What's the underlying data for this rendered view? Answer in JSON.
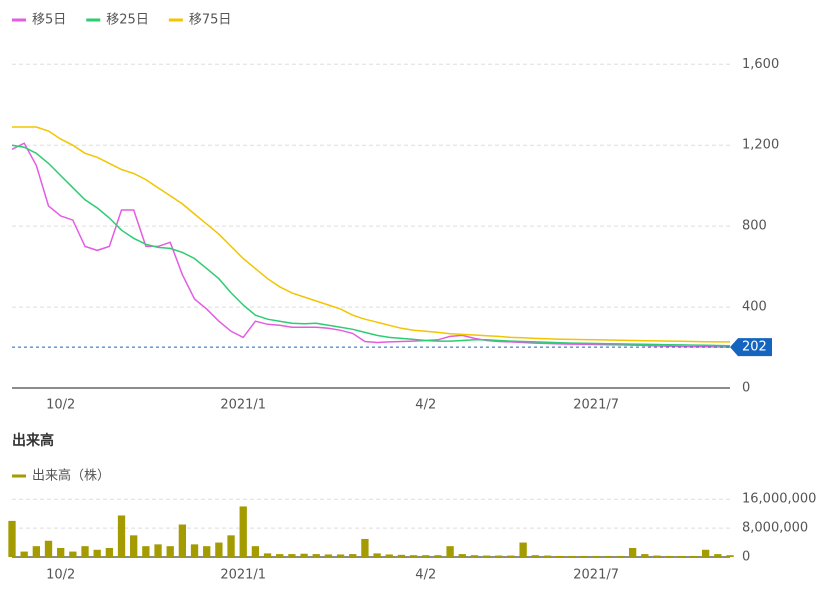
{
  "chart_data": [
    {
      "type": "line",
      "categories": [
        null,
        null,
        null,
        null,
        "10/2",
        null,
        null,
        null,
        null,
        null,
        null,
        null,
        null,
        null,
        null,
        null,
        null,
        null,
        null,
        "2021/1",
        null,
        null,
        null,
        null,
        null,
        null,
        null,
        null,
        null,
        null,
        null,
        null,
        null,
        null,
        "4/2",
        null,
        null,
        null,
        null,
        null,
        null,
        null,
        null,
        null,
        null,
        null,
        null,
        null,
        "2021/7",
        null,
        null,
        null,
        null,
        null,
        null,
        null,
        null,
        null,
        null,
        null
      ],
      "series": [
        {
          "name": "移5日",
          "color": "#e35de3",
          "values": [
            1180,
            1210,
            1100,
            900,
            850,
            830,
            700,
            680,
            700,
            880,
            880,
            700,
            700,
            720,
            560,
            440,
            390,
            330,
            280,
            250,
            330,
            315,
            310,
            300,
            300,
            300,
            295,
            285,
            270,
            230,
            225,
            228,
            230,
            232,
            235,
            238,
            255,
            260,
            245,
            235,
            230,
            228,
            225,
            222,
            220,
            218,
            217,
            216,
            215,
            214,
            213,
            212,
            210,
            208,
            206,
            205,
            204,
            204,
            203,
            202
          ]
        },
        {
          "name": "移25日",
          "color": "#2ecc71",
          "values": [
            1200,
            1190,
            1160,
            1110,
            1050,
            990,
            930,
            890,
            840,
            780,
            740,
            710,
            695,
            690,
            670,
            640,
            590,
            540,
            470,
            410,
            360,
            340,
            330,
            320,
            318,
            320,
            310,
            300,
            290,
            275,
            260,
            250,
            245,
            240,
            235,
            232,
            232,
            235,
            238,
            238,
            235,
            232,
            230,
            228,
            226,
            224,
            222,
            221,
            220,
            219,
            218,
            217,
            216,
            215,
            214,
            213,
            212,
            211,
            210,
            209
          ]
        },
        {
          "name": "移75日",
          "color": "#f2c500",
          "values": [
            1290,
            1290,
            1290,
            1270,
            1230,
            1200,
            1160,
            1140,
            1110,
            1080,
            1060,
            1030,
            990,
            950,
            910,
            860,
            810,
            760,
            700,
            640,
            590,
            540,
            500,
            470,
            450,
            430,
            410,
            390,
            360,
            340,
            325,
            310,
            295,
            285,
            280,
            275,
            268,
            265,
            262,
            258,
            255,
            250,
            248,
            245,
            243,
            241,
            240,
            239,
            238,
            237,
            236,
            235,
            234,
            233,
            232,
            231,
            230,
            229,
            228,
            228
          ]
        }
      ],
      "last_price": 202,
      "ylim": [
        0,
        1720
      ],
      "yticks": [
        0,
        400,
        800,
        {
          "value": 1200,
          "label": "1,200"
        },
        {
          "value": 1600,
          "label": "1,600"
        }
      ],
      "grid": true
    },
    {
      "type": "bar",
      "title": "出来高",
      "categories": [
        null,
        null,
        null,
        null,
        "10/2",
        null,
        null,
        null,
        null,
        null,
        null,
        null,
        null,
        null,
        null,
        null,
        null,
        null,
        null,
        "2021/1",
        null,
        null,
        null,
        null,
        null,
        null,
        null,
        null,
        null,
        null,
        null,
        null,
        null,
        null,
        "4/2",
        null,
        null,
        null,
        null,
        null,
        null,
        null,
        null,
        null,
        null,
        null,
        null,
        null,
        "2021/7",
        null,
        null,
        null,
        null,
        null,
        null,
        null,
        null,
        null,
        null,
        null
      ],
      "series": [
        {
          "name": "出来高（株）",
          "color": "#a39b00",
          "values": [
            10000000,
            1500000,
            3000000,
            4500000,
            2500000,
            1500000,
            3000000,
            2000000,
            2500000,
            11500000,
            6000000,
            3000000,
            3500000,
            3000000,
            9000000,
            3500000,
            3000000,
            4000000,
            6000000,
            14000000,
            3000000,
            1000000,
            800000,
            800000,
            900000,
            800000,
            700000,
            700000,
            800000,
            5000000,
            1000000,
            700000,
            600000,
            500000,
            500000,
            500000,
            3000000,
            800000,
            500000,
            400000,
            400000,
            400000,
            4000000,
            500000,
            400000,
            300000,
            300000,
            300000,
            300000,
            300000,
            300000,
            2500000,
            800000,
            400000,
            300000,
            300000,
            300000,
            2000000,
            800000,
            500000
          ]
        }
      ],
      "ylim": [
        0,
        18000000
      ],
      "yticks": [
        0,
        {
          "value": 8000000,
          "label": "8,000,000"
        },
        {
          "value": 16000000,
          "label": "16,000,000"
        }
      ],
      "grid": true
    }
  ]
}
